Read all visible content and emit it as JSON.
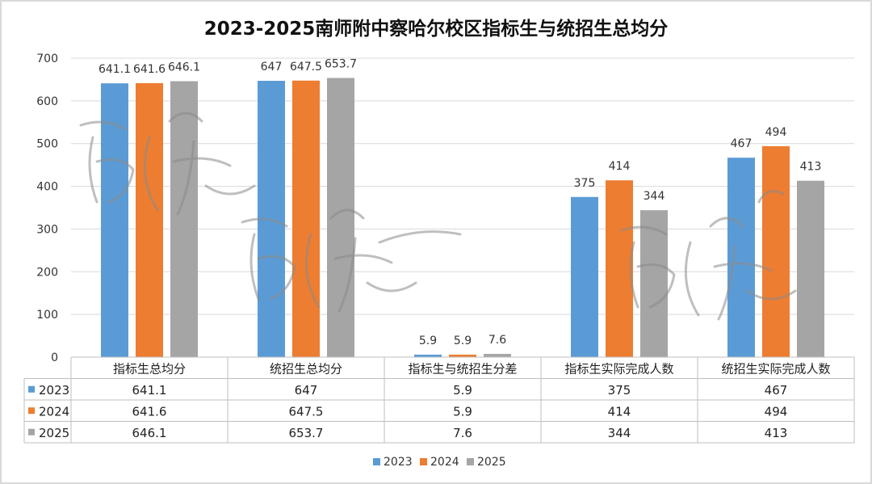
{
  "chart_data": {
    "type": "bar",
    "title": "2023-2025南师附中察哈尔校区指标生与统招生总均分",
    "categories": [
      "指标生总均分",
      "统招生总均分",
      "指标生与统招生分差",
      "指标生实际完成人数",
      "统招生实际完成人数"
    ],
    "series": [
      {
        "name": "2023",
        "color": "#5b9bd5",
        "values": [
          641.1,
          647,
          5.9,
          375,
          467
        ],
        "labels": [
          "641.1",
          "647",
          "5.9",
          "375",
          "467"
        ]
      },
      {
        "name": "2024",
        "color": "#ed7d31",
        "values": [
          641.6,
          647.5,
          5.9,
          414,
          494
        ],
        "labels": [
          "641.6",
          "647.5",
          "5.9",
          "414",
          "494"
        ]
      },
      {
        "name": "2025",
        "color": "#a5a5a5",
        "values": [
          646.1,
          653.7,
          7.6,
          344,
          413
        ],
        "labels": [
          "646.1",
          "653.7",
          "7.6",
          "344",
          "413"
        ]
      }
    ],
    "ylim": [
      0,
      700
    ],
    "yticks": [
      0,
      100,
      200,
      300,
      400,
      500,
      600,
      700
    ],
    "grid": true,
    "legend": "bottom",
    "data_table": true
  }
}
